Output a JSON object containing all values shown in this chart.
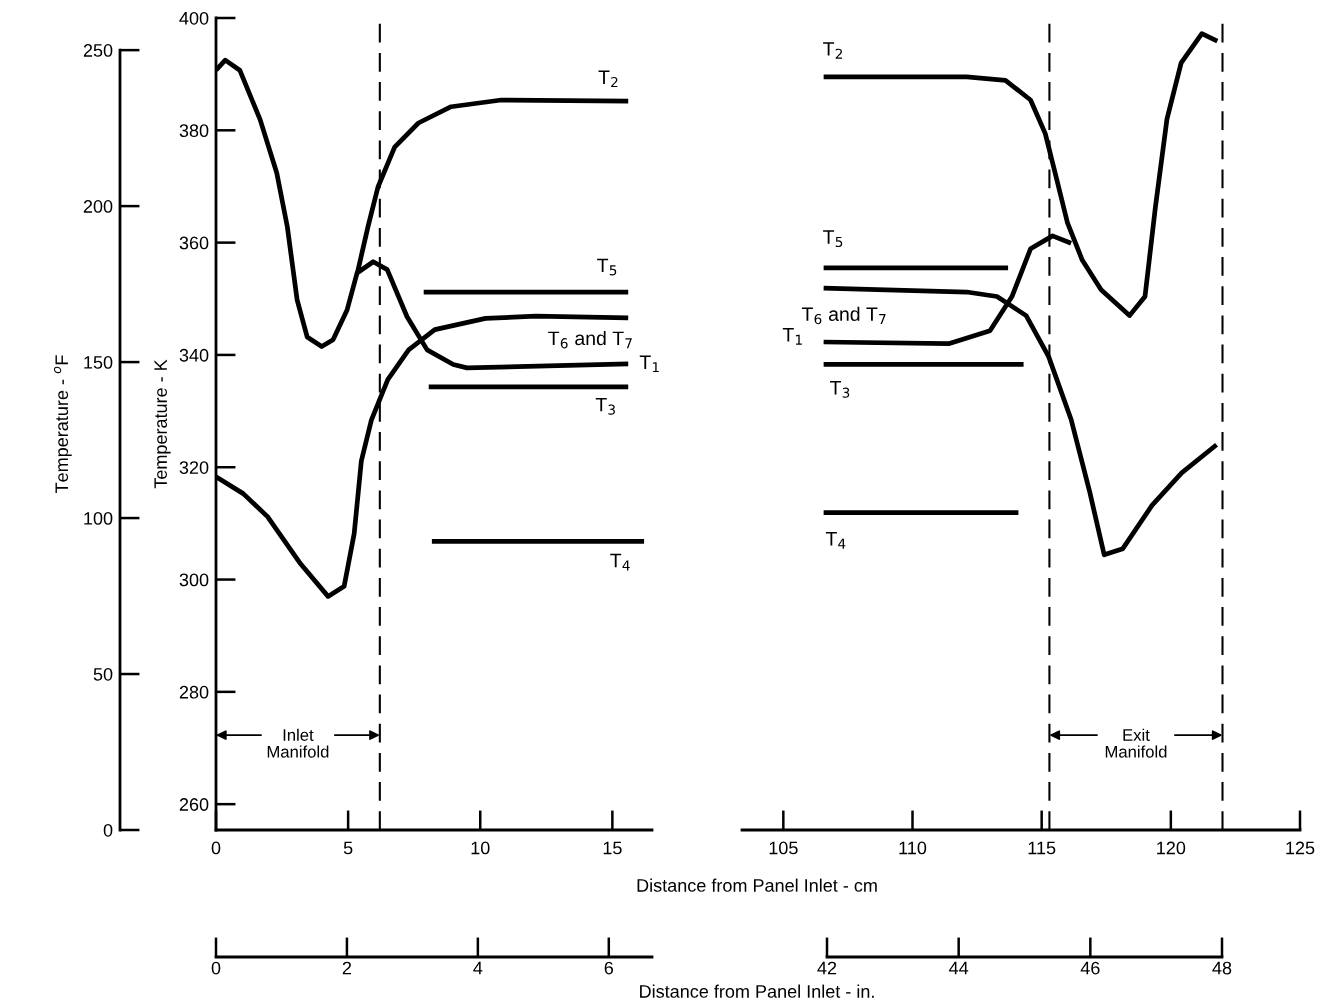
{
  "chart_data": [
    {
      "type": "line",
      "xlabel": "Distance from Panel Inlet - cm",
      "ylabel": "Temperature - K",
      "y2label": "Temperature - $^{o}$F",
      "x2label": "Distance from Panel Inlet - in.",
      "xlim": [
        0,
        16.5
      ],
      "xticks": [
        0,
        5,
        10,
        15
      ],
      "ylim": [
        255.4,
        400
      ],
      "yticks": [
        260,
        280,
        300,
        320,
        340,
        360,
        380,
        400
      ],
      "y2lim": [
        0,
        260.3
      ],
      "y2ticks": [
        0,
        50,
        100,
        150,
        200,
        250
      ],
      "x2lim": [
        0,
        6.66
      ],
      "x2ticks": [
        0,
        2,
        4,
        6
      ],
      "grid": false,
      "line_style": "solid",
      "marker": "none",
      "series": [
        {
          "name": "T$_{1}$",
          "color": "#000000",
          "x": [
            0,
            0.35,
            0.9,
            1.67,
            2.3,
            2.7,
            3.07,
            3.45,
            4.0,
            4.43,
            4.96,
            5.34,
            5.95,
            6.48,
            7.23,
            7.99,
            8.98,
            9.5,
            15.6
          ],
          "values": [
            390.7,
            392.5,
            390.7,
            381.9,
            372.4,
            362.8,
            349.8,
            343.2,
            341.5,
            342.7,
            348.0,
            354.6,
            356.6,
            355.2,
            346.8,
            340.9,
            338.3,
            337.7,
            338.4
          ]
        },
        {
          "name": "T$_{2}$",
          "color": "#000000",
          "x": [
            5.35,
            5.75,
            6.13,
            6.76,
            7.66,
            8.9,
            10.8,
            15.6
          ],
          "values": [
            354.6,
            362.8,
            369.9,
            377.0,
            381.3,
            384.2,
            385.4,
            385.2
          ]
        },
        {
          "name": "T$_{3}$",
          "color": "#000000",
          "x": [
            8.05,
            15.6
          ],
          "values": [
            334.3,
            334.3
          ]
        },
        {
          "name": "T$_{4}$",
          "color": "#000000",
          "x": [
            8.17,
            16.2
          ],
          "values": [
            306.8,
            306.8
          ]
        },
        {
          "name": "T$_{5}$",
          "color": "#000000",
          "x": [
            7.86,
            15.6
          ],
          "values": [
            351.2,
            351.2
          ]
        },
        {
          "name": "T$_{6}$ and T$_{7}$",
          "color": "#000000",
          "x": [
            0,
            1.03,
            1.95,
            3.2,
            4.24,
            4.85,
            5.23,
            5.5,
            5.88,
            6.5,
            7.29,
            8.28,
            10.2,
            12.1,
            15.6
          ],
          "values": [
            318.3,
            315.3,
            311.2,
            302.8,
            297.0,
            298.8,
            308.2,
            321.1,
            328.4,
            335.6,
            340.9,
            344.5,
            346.5,
            346.9,
            346.6
          ]
        }
      ],
      "ref_lines": [
        {
          "axis": "x",
          "value": 6.2,
          "line_style": "dashed",
          "color": "#000000"
        }
      ],
      "annotations": [
        {
          "text": "Inlet\nManifold",
          "x": 6.2,
          "y": 272.3
        }
      ]
    },
    {
      "type": "line",
      "tick_labels": "x",
      "xlim": [
        103.4,
        125
      ],
      "xticks": [
        105,
        110,
        115,
        120,
        125
      ],
      "ylim": [
        255.4,
        400
      ],
      "x2lim": [
        42,
        48
      ],
      "x2ticks": [
        42,
        44,
        46,
        48
      ],
      "grid": false,
      "line_style": "solid",
      "marker": "none",
      "series": [
        {
          "name": "T$_{2}$",
          "color": "#000000",
          "x": [
            106.56,
            112.1,
            113.6,
            114.57,
            115.14,
            115.57,
            116.0,
            116.57,
            117.3,
            118.4,
            119.0,
            119.4,
            119.85,
            120.4,
            121.2,
            121.8
          ],
          "values": [
            389.5,
            389.5,
            388.9,
            385.4,
            379.4,
            371.5,
            363.5,
            356.9,
            351.6,
            347.0,
            350.4,
            366.2,
            382.0,
            392.0,
            397.2,
            395.9
          ]
        },
        {
          "name": "T$_{1}$",
          "color": "#000000",
          "x": [
            106.56,
            111.4,
            113.0,
            113.85,
            114.57,
            115.42,
            116.14
          ],
          "values": [
            342.3,
            342.0,
            344.3,
            350.4,
            358.9,
            361.2,
            359.9
          ]
        },
        {
          "name": "T$_{3}$",
          "color": "#000000",
          "x": [
            106.56,
            114.3
          ],
          "values": [
            338.3,
            338.3
          ]
        },
        {
          "name": "T$_{4}$",
          "color": "#000000",
          "x": [
            106.56,
            114.1
          ],
          "values": [
            311.9,
            311.9
          ]
        },
        {
          "name": "T$_{5}$",
          "color": "#000000",
          "x": [
            106.56,
            113.7
          ],
          "values": [
            355.5,
            355.5
          ]
        },
        {
          "name": "T$_{6}$ and T$_{7}$",
          "color": "#000000",
          "x": [
            106.56,
            112.1,
            113.27,
            114.4,
            115.27,
            116.14,
            116.85,
            117.42,
            118.14,
            119.27,
            120.42,
            121.77
          ],
          "values": [
            351.9,
            351.2,
            350.4,
            347.0,
            339.7,
            328.5,
            315.8,
            304.4,
            305.5,
            313.2,
            319.0,
            324.0
          ]
        }
      ],
      "ref_lines": [
        {
          "axis": "x",
          "value": 115.3,
          "line_style": "dashed",
          "color": "#000000"
        },
        {
          "axis": "x",
          "value": 122.0,
          "line_style": "dashed",
          "color": "#000000"
        }
      ],
      "annotations": [
        {
          "text": "Exit\nManifold",
          "x": 122.0,
          "y": 272.3
        }
      ]
    }
  ]
}
